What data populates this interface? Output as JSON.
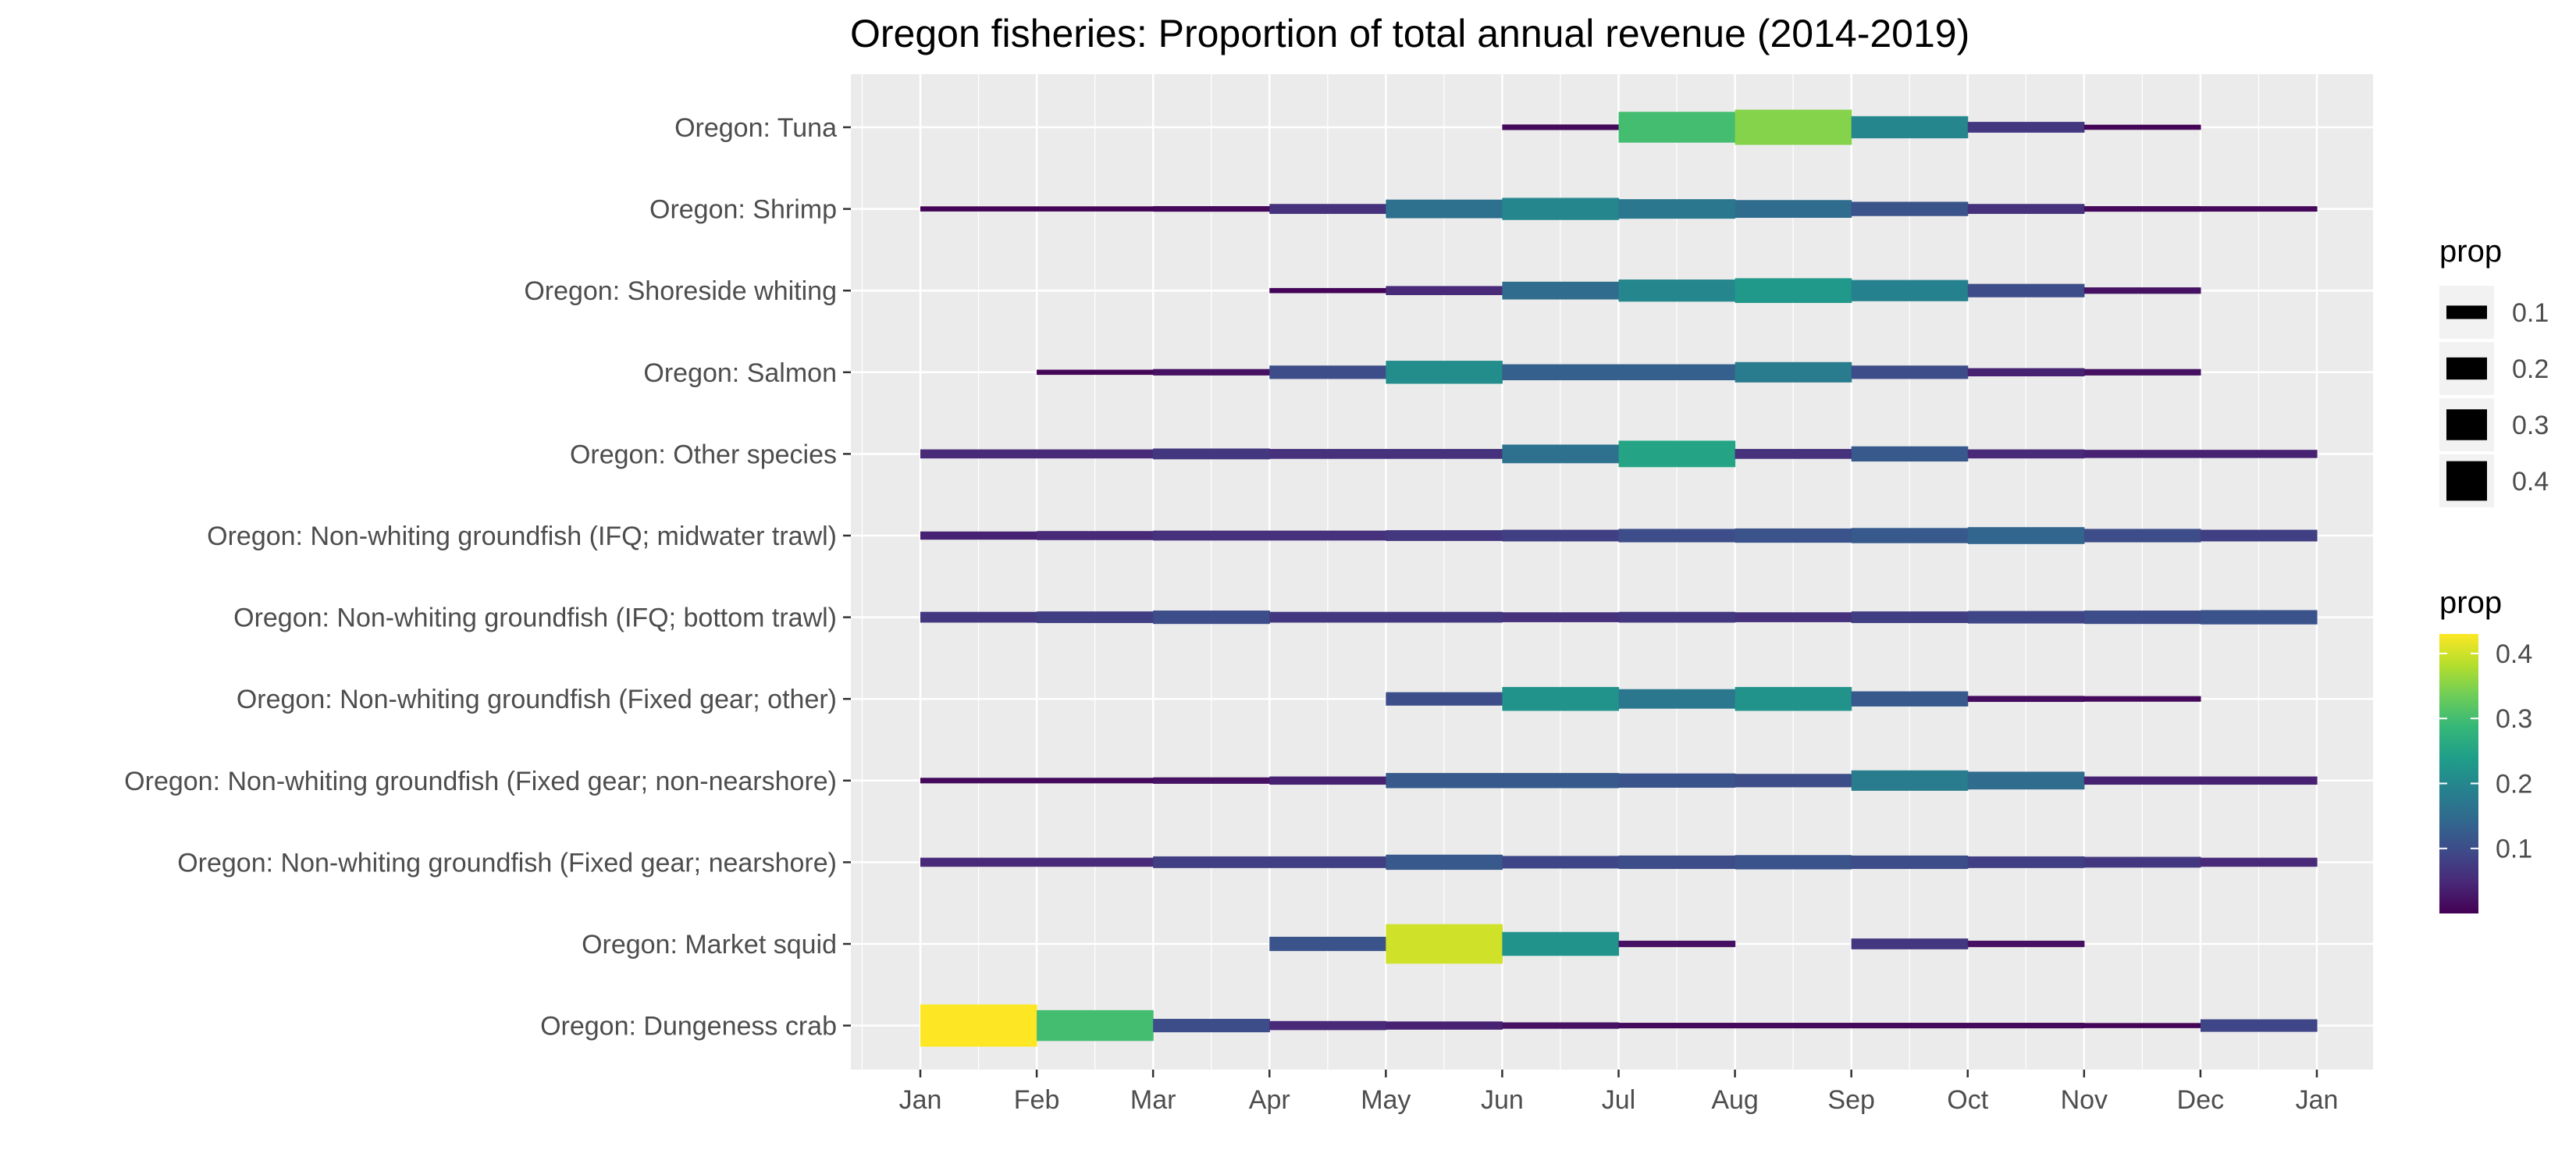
{
  "chart_data": {
    "type": "heatmap",
    "title": "Oregon fisheries: Proportion of total annual revenue (2014-2019)",
    "xlabel": "",
    "ylabel": "",
    "x_tick_labels": [
      "Jan",
      "Feb",
      "Mar",
      "Apr",
      "May",
      "Jun",
      "Jul",
      "Aug",
      "Sep",
      "Oct",
      "Nov",
      "Dec",
      "Jan"
    ],
    "months": [
      "Jan",
      "Feb",
      "Mar",
      "Apr",
      "May",
      "Jun",
      "Jul",
      "Aug",
      "Sep",
      "Oct",
      "Nov",
      "Dec"
    ],
    "fisheries": [
      "Oregon: Tuna",
      "Oregon: Shrimp",
      "Oregon: Shoreside whiting",
      "Oregon: Salmon",
      "Oregon: Other species",
      "Oregon: Non-whiting groundfish (IFQ; midwater trawl)",
      "Oregon: Non-whiting groundfish (IFQ; bottom trawl)",
      "Oregon: Non-whiting groundfish (Fixed gear; other)",
      "Oregon: Non-whiting groundfish (Fixed gear; non-nearshore)",
      "Oregon: Non-whiting groundfish (Fixed gear; nearshore)",
      "Oregon: Market squid",
      "Oregon: Dungeness crab"
    ],
    "values": [
      [
        null,
        null,
        null,
        null,
        null,
        0.01,
        0.3,
        0.35,
        0.2,
        0.07,
        0.005,
        null
      ],
      [
        0.005,
        0.005,
        0.01,
        0.06,
        0.16,
        0.2,
        0.17,
        0.15,
        0.11,
        0.06,
        0.01,
        0.008
      ],
      [
        null,
        null,
        null,
        0.005,
        0.05,
        0.15,
        0.2,
        0.23,
        0.19,
        0.1,
        0.02,
        null
      ],
      [
        null,
        0.005,
        0.02,
        0.1,
        0.21,
        0.13,
        0.13,
        0.18,
        0.1,
        0.04,
        0.02,
        null
      ],
      [
        0.05,
        0.05,
        0.07,
        0.06,
        0.06,
        0.16,
        0.25,
        0.06,
        0.12,
        0.05,
        0.04,
        0.04
      ],
      [
        0.04,
        0.05,
        0.06,
        0.06,
        0.07,
        0.08,
        0.1,
        0.11,
        0.12,
        0.14,
        0.1,
        0.08
      ],
      [
        0.07,
        0.08,
        0.1,
        0.07,
        0.07,
        0.06,
        0.07,
        0.06,
        0.08,
        0.09,
        0.1,
        0.11
      ],
      [
        null,
        null,
        null,
        null,
        0.1,
        0.22,
        0.17,
        0.22,
        0.12,
        0.015,
        0.01,
        null
      ],
      [
        0.01,
        0.01,
        0.02,
        0.04,
        0.12,
        0.12,
        0.11,
        0.1,
        0.18,
        0.15,
        0.04,
        0.04
      ],
      [
        0.05,
        0.05,
        0.08,
        0.08,
        0.12,
        0.09,
        0.1,
        0.11,
        0.1,
        0.08,
        0.07,
        0.05
      ],
      [
        null,
        null,
        null,
        0.11,
        0.4,
        0.22,
        0.02,
        null,
        0.07,
        0.02,
        null,
        null
      ],
      [
        0.43,
        0.3,
        0.1,
        0.05,
        0.04,
        0.02,
        0.01,
        0.01,
        0.01,
        0.01,
        0.005,
        0.09
      ]
    ],
    "size_legend": {
      "title": "prop",
      "values": [
        "0.1",
        "0.2",
        "0.3",
        "0.4"
      ]
    },
    "color_legend": {
      "title": "prop",
      "values": [
        "0.4",
        "0.3",
        "0.2",
        "0.1"
      ]
    },
    "grid": true,
    "legend_position": "right",
    "colors": {
      "panel_background": "#EBEBEB",
      "gridline": "#FFFFFF",
      "text": "#4D4D4D",
      "title": "#000000",
      "viridis": [
        "#440154",
        "#482878",
        "#3E4A89",
        "#31688E",
        "#26828E",
        "#1F9E89",
        "#35B779",
        "#6DCD59",
        "#B4DE2C",
        "#FDE725"
      ]
    }
  }
}
